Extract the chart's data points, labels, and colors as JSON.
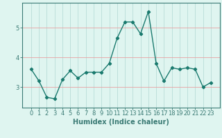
{
  "x": [
    0,
    1,
    2,
    3,
    4,
    5,
    6,
    7,
    8,
    9,
    10,
    11,
    12,
    13,
    14,
    15,
    16,
    17,
    18,
    19,
    20,
    21,
    22,
    23
  ],
  "y": [
    3.6,
    3.2,
    2.65,
    2.6,
    3.25,
    3.55,
    3.3,
    3.5,
    3.5,
    3.5,
    3.8,
    4.65,
    5.2,
    5.2,
    4.8,
    5.55,
    3.8,
    3.2,
    3.65,
    3.6,
    3.65,
    3.6,
    3.0,
    3.15
  ],
  "line_color": "#1a7a6e",
  "marker": "D",
  "marker_size": 2.2,
  "line_width": 1.0,
  "bg_color": "#dff5f0",
  "axis_color": "#3a7a74",
  "xlabel": "Humidex (Indice chaleur)",
  "xlabel_fontsize": 7,
  "tick_fontsize": 6,
  "ylim": [
    2.3,
    5.85
  ],
  "yticks": [
    3,
    4,
    5
  ],
  "xticks": [
    0,
    1,
    2,
    3,
    4,
    5,
    6,
    7,
    8,
    9,
    10,
    11,
    12,
    13,
    14,
    15,
    16,
    17,
    18,
    19,
    20,
    21,
    22,
    23
  ],
  "grid_hcolor": "#e8a0a0",
  "grid_vcolor": "#b8ddd8"
}
